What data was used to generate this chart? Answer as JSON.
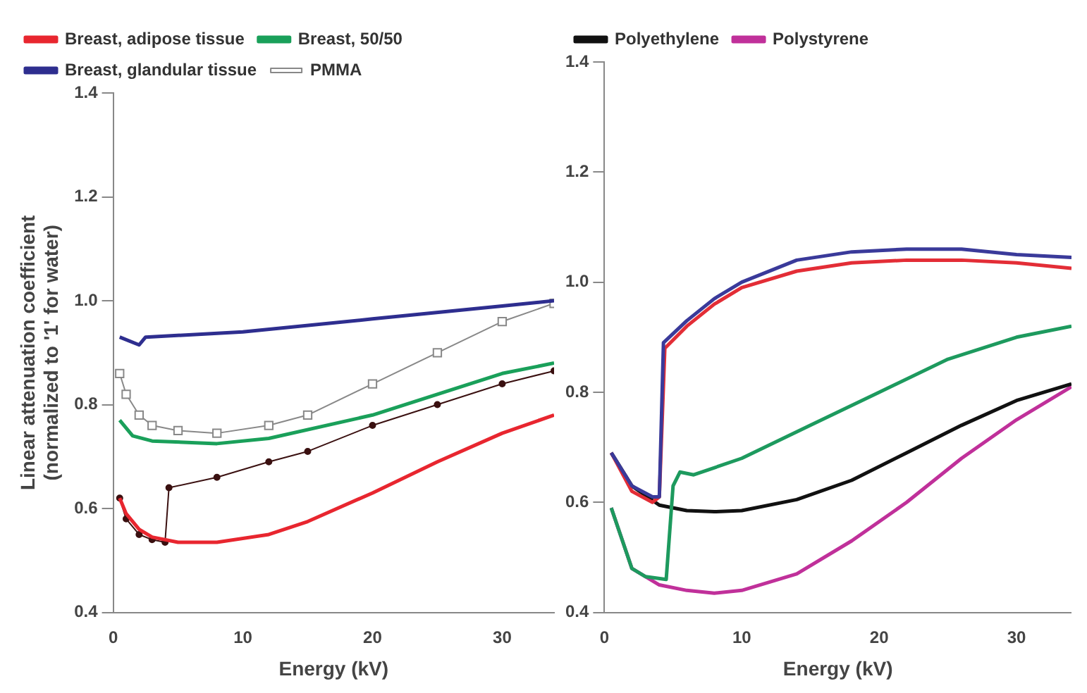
{
  "chart_data": [
    {
      "type": "line",
      "xlabel": "Energy (kV)",
      "ylabel": "Linear attenuation coefficient\n(normalized to '1' for water)",
      "xlim": [
        0,
        34
      ],
      "xticks": [
        0,
        10,
        20,
        30
      ],
      "ylim": [
        0.4,
        1.4
      ],
      "yticks": [
        {
          "value": 0.4,
          "label": "0.4"
        },
        {
          "value": 0.6,
          "label": "0.6"
        },
        {
          "value": 0.8,
          "label": "0.8"
        },
        {
          "value": 1.0,
          "label": "1.0"
        },
        {
          "value": 1.2,
          "label": "1.2"
        },
        {
          "value": 1.4,
          "label": "1.4"
        }
      ],
      "grid": false,
      "legend": "top",
      "marker": "none",
      "series": [
        {
          "name": "Breast, adipose tissue",
          "color": "#e8262f",
          "x": [
            0.5,
            1,
            2,
            3,
            5,
            8,
            12,
            15,
            20,
            25,
            30,
            34
          ],
          "values": [
            0.62,
            0.59,
            0.56,
            0.545,
            0.535,
            0.535,
            0.55,
            0.575,
            0.63,
            0.69,
            0.745,
            0.78
          ]
        },
        {
          "name": "Breast, 50/50",
          "color": "#1aa05a",
          "x": [
            0.5,
            1.5,
            3,
            8,
            12,
            20,
            25,
            30,
            34
          ],
          "values": [
            0.77,
            0.74,
            0.73,
            0.725,
            0.735,
            0.78,
            0.82,
            0.86,
            0.88
          ]
        },
        {
          "name": "Breast, glandular tissue",
          "color": "#2e2e8f",
          "x": [
            0.5,
            2,
            2.5,
            10,
            20,
            30,
            34
          ],
          "values": [
            0.93,
            0.915,
            0.93,
            0.94,
            0.965,
            0.99,
            1.0
          ]
        },
        {
          "name": "PMMA",
          "color": "#888888",
          "marker": "square",
          "x": [
            0.5,
            1,
            2,
            3,
            5,
            8,
            12,
            15,
            20,
            25,
            30,
            34
          ],
          "values": [
            0.86,
            0.82,
            0.78,
            0.76,
            0.75,
            0.745,
            0.76,
            0.78,
            0.84,
            0.9,
            0.96,
            0.995
          ]
        },
        {
          "color": "#3a1010",
          "marker": "circle",
          "x": [
            0.5,
            1,
            2,
            3,
            4,
            4.3,
            8,
            12,
            15,
            20,
            25,
            30,
            34
          ],
          "values": [
            0.62,
            0.58,
            0.55,
            0.54,
            0.535,
            0.64,
            0.66,
            0.69,
            0.71,
            0.76,
            0.8,
            0.84,
            0.865
          ]
        }
      ]
    },
    {
      "type": "line",
      "xlabel": "Energy (kV)",
      "xlim": [
        0,
        34
      ],
      "xticks": [
        0,
        10,
        20,
        30
      ],
      "ylim": [
        0.4,
        1.4
      ],
      "yticks": [
        {
          "value": 0.4,
          "label": "0.4"
        },
        {
          "value": 0.6,
          "label": "0.6"
        },
        {
          "value": 0.8,
          "label": "0.8"
        },
        {
          "value": 1.0,
          "label": "1.0"
        },
        {
          "value": 1.2,
          "label": "1.2"
        },
        {
          "value": 1.4,
          "label": "1.4"
        }
      ],
      "grid": false,
      "legend": "top",
      "marker": "none",
      "series": [
        {
          "color": "#3a3a9a",
          "x": [
            0.5,
            2,
            3.5,
            4,
            4.3,
            6,
            8,
            10,
            14,
            18,
            22,
            26,
            30,
            34
          ],
          "values": [
            0.69,
            0.63,
            0.61,
            0.61,
            0.89,
            0.93,
            0.97,
            1.0,
            1.04,
            1.055,
            1.06,
            1.06,
            1.05,
            1.045
          ]
        },
        {
          "color": "#e32d36",
          "x": [
            0.5,
            2,
            3.5,
            4,
            4.4,
            6,
            8,
            10,
            14,
            18,
            22,
            26,
            30,
            34
          ],
          "values": [
            0.69,
            0.62,
            0.6,
            0.61,
            0.88,
            0.92,
            0.96,
            0.99,
            1.02,
            1.035,
            1.04,
            1.04,
            1.035,
            1.025
          ]
        },
        {
          "color": "#1d9a5e",
          "x": [
            0.5,
            2,
            3,
            4.5,
            5,
            5.5,
            6.5,
            10,
            15,
            20,
            25,
            30,
            34
          ],
          "values": [
            0.59,
            0.48,
            0.465,
            0.46,
            0.63,
            0.655,
            0.65,
            0.68,
            0.74,
            0.8,
            0.86,
            0.9,
            0.92
          ]
        },
        {
          "name": "Polyethylene",
          "color": "#111111",
          "x": [
            0.5,
            2,
            4,
            6,
            8,
            10,
            14,
            18,
            22,
            26,
            30,
            34
          ],
          "values": [
            0.69,
            0.63,
            0.595,
            0.585,
            0.583,
            0.585,
            0.605,
            0.64,
            0.69,
            0.74,
            0.785,
            0.815
          ]
        },
        {
          "name": "Polystyrene",
          "color": "#c0309a",
          "x": [
            0.5,
            2,
            4,
            6,
            8,
            10,
            14,
            18,
            22,
            26,
            30,
            34
          ],
          "values": [
            0.59,
            0.48,
            0.45,
            0.44,
            0.435,
            0.44,
            0.47,
            0.53,
            0.6,
            0.68,
            0.75,
            0.81
          ]
        }
      ]
    }
  ]
}
